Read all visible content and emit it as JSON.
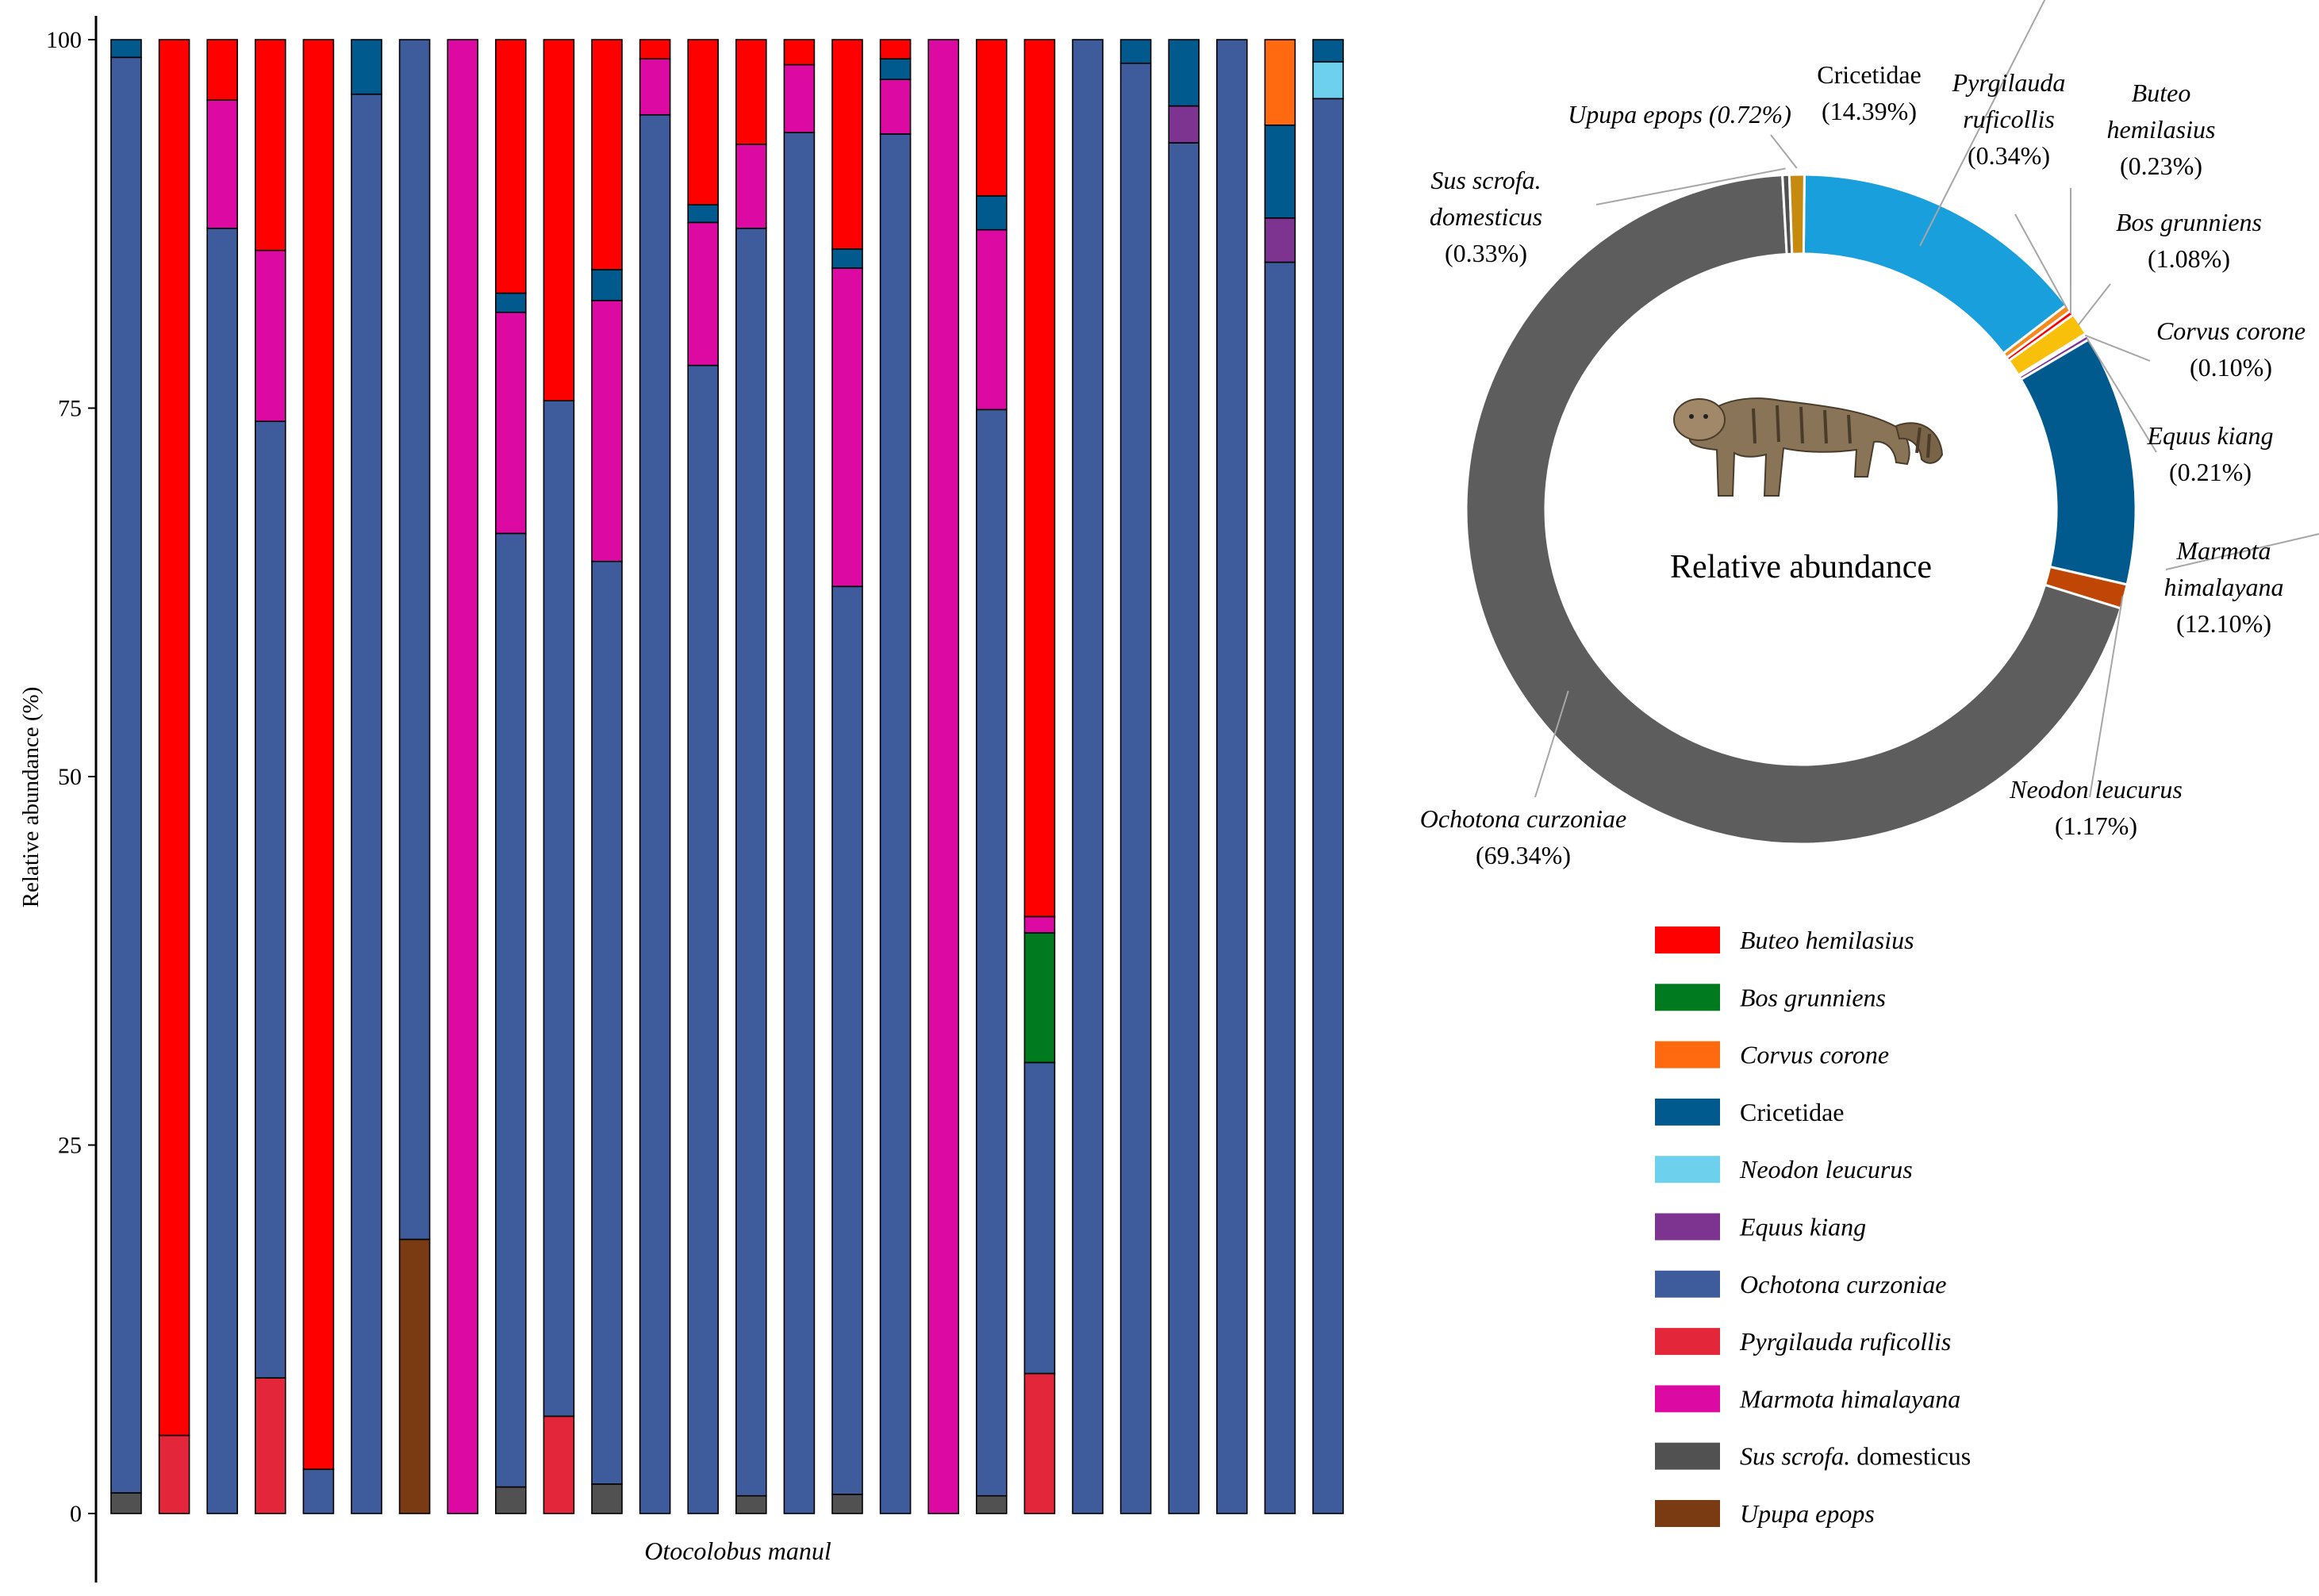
{
  "colors": {
    "Buteo hemilasius": "#ff0000",
    "Bos grunniens": "#007a1e",
    "Corvus corone": "#ff6a10",
    "Cricetidae": "#005a8e",
    "Neodon leucurus": "#6dd1ed",
    "Equus kiang": "#7d3491",
    "Ochotona curzoniae": "#3e5b9b",
    "Pyrgilauda ruficollis": "#e3263a",
    "Marmota himalayana": "#dc0aa2",
    "Sus scrofa. domesticus": "#515151",
    "Upupa epops": "#7a3b12",
    "Cricetidae (donut)": "#199fdc",
    "Bos grunniens (donut)": "#f8c00b",
    "Marmota himalayana (donut)": "#005a8e",
    "Neodon leucurus (donut)": "#bf4605",
    "Ochotona curzoniae (donut)": "#5d5d5d",
    "Upupa epops (donut)": "#c68a0e",
    "Pyrgilauda ruficollis (donut)": "#f58a1e"
  },
  "chart_data": [
    {
      "type": "bar",
      "stacked": true,
      "title": "",
      "xlabel": "Otocolobus manul",
      "ylabel": "Relative abundance (%)",
      "ylim": [
        0,
        100
      ],
      "yticks": [
        "0",
        "25",
        "50",
        "75",
        "100"
      ],
      "stack_order_bottom_to_top": [
        "Upupa epops",
        "Sus scrofa. domesticus",
        "Pyrgilauda ruficollis",
        "Ochotona curzoniae",
        "Bos grunniens",
        "Marmota himalayana",
        "Equus kiang",
        "Neodon leucurus",
        "Cricetidae",
        "Corvus corone",
        "Buteo hemilasius"
      ],
      "samples": [
        {
          "Sus scrofa. domesticus": 1.4,
          "Ochotona curzoniae": 97.4,
          "Cricetidae": 1.2
        },
        {
          "Pyrgilauda ruficollis": 5.3,
          "Buteo hemilasius": 94.7
        },
        {
          "Ochotona curzoniae": 87.2,
          "Marmota himalayana": 8.7,
          "Buteo hemilasius": 4.1
        },
        {
          "Ochotona curzoniae": 64.9,
          "Pyrgilauda ruficollis": 9.2,
          "Marmota himalayana": 11.6,
          "Buteo hemilasius": 14.3
        },
        {
          "Ochotona curzoniae": 3.0,
          "Buteo hemilasius": 97.0
        },
        {
          "Ochotona curzoniae": 96.3,
          "Cricetidae": 3.7
        },
        {
          "Upupa epops": 18.6,
          "Ochotona curzoniae": 81.4
        },
        {
          "Marmota himalayana": 100
        },
        {
          "Sus scrofa. domesticus": 1.8,
          "Ochotona curzoniae": 64.7,
          "Marmota himalayana": 15.0,
          "Cricetidae": 1.3,
          "Buteo hemilasius": 17.2
        },
        {
          "Ochotona curzoniae": 68.9,
          "Pyrgilauda ruficollis": 6.6,
          "Buteo hemilasius": 24.5
        },
        {
          "Sus scrofa. domesticus": 2.0,
          "Ochotona curzoniae": 62.6,
          "Marmota himalayana": 17.7,
          "Cricetidae": 2.1,
          "Buteo hemilasius": 15.6
        },
        {
          "Ochotona curzoniae": 94.9,
          "Marmota himalayana": 3.8,
          "Buteo hemilasius": 1.3
        },
        {
          "Ochotona curzoniae": 77.9,
          "Marmota himalayana": 9.7,
          "Cricetidae": 1.2,
          "Buteo hemilasius": 11.2
        },
        {
          "Sus scrofa. domesticus": 1.2,
          "Ochotona curzoniae": 86.0,
          "Marmota himalayana": 5.7,
          "Buteo hemilasius": 7.1
        },
        {
          "Ochotona curzoniae": 93.7,
          "Marmota himalayana": 4.6,
          "Buteo hemilasius": 1.7
        },
        {
          "Sus scrofa. domesticus": 1.3,
          "Ochotona curzoniae": 61.6,
          "Marmota himalayana": 21.6,
          "Cricetidae": 1.3,
          "Buteo hemilasius": 14.2
        },
        {
          "Ochotona curzoniae": 93.6,
          "Marmota himalayana": 3.7,
          "Cricetidae": 1.4,
          "Buteo hemilasius": 1.3
        },
        {
          "Marmota himalayana": 100
        },
        {
          "Sus scrofa. domesticus": 1.2,
          "Ochotona curzoniae": 73.7,
          "Marmota himalayana": 12.2,
          "Cricetidae": 2.3,
          "Buteo hemilasius": 10.6
        },
        {
          "Ochotona curzoniae": 21.1,
          "Pyrgilauda ruficollis": 9.5,
          "Marmota himalayana": 1.1,
          "Bos grunniens": 8.8,
          "Buteo hemilasius": 59.5
        },
        {
          "Ochotona curzoniae": 100
        },
        {
          "Ochotona curzoniae": 98.4,
          "Cricetidae": 1.6
        },
        {
          "Ochotona curzoniae": 93.0,
          "Equus kiang": 2.5,
          "Cricetidae": 4.5
        },
        {
          "Ochotona curzoniae": 100
        },
        {
          "Ochotona curzoniae": 84.9,
          "Equus kiang": 3.0,
          "Cricetidae": 6.3,
          "Corvus corone": 5.8
        },
        {
          "Ochotona curzoniae": 96.0,
          "Neodon leucurus": 2.5,
          "Cricetidae": 1.5
        }
      ]
    },
    {
      "type": "pie",
      "donut": true,
      "center_label": "Relative abundance",
      "slices": [
        {
          "name": "Cricetidae",
          "value": 14.39,
          "label_lines": [
            "Cricetidae",
            "(14.39%)"
          ],
          "italic": false,
          "color_key": "Cricetidae (donut)"
        },
        {
          "name": "Pyrgilauda ruficollis",
          "value": 0.34,
          "label_lines": [
            "Pyrgilauda",
            "ruficollis",
            "(0.34%)"
          ],
          "italic": true,
          "color_key": "Pyrgilauda ruficollis (donut)"
        },
        {
          "name": "Buteo hemilasius",
          "value": 0.23,
          "label_lines": [
            "Buteo",
            "hemilasius",
            "(0.23%)"
          ],
          "italic": true,
          "color_key": "Buteo hemilasius"
        },
        {
          "name": "Bos grunniens",
          "value": 1.08,
          "label_lines": [
            "Bos grunniens",
            "(1.08%)"
          ],
          "italic": true,
          "color_key": "Bos grunniens (donut)"
        },
        {
          "name": "Corvus corone",
          "value": 0.1,
          "label_lines": [
            "Corvus corone",
            "(0.10%)"
          ],
          "italic": true,
          "color_key": "Corvus corone"
        },
        {
          "name": "Equus kiang",
          "value": 0.21,
          "label_lines": [
            "Equus kiang",
            "(0.21%)"
          ],
          "italic": true,
          "color_key": "Equus kiang"
        },
        {
          "name": "Marmota himalayana",
          "value": 12.1,
          "label_lines": [
            "Marmota",
            "himalayana",
            "(12.10%)"
          ],
          "italic": true,
          "color_key": "Marmota himalayana (donut)"
        },
        {
          "name": "Neodon leucurus",
          "value": 1.17,
          "label_lines": [
            "Neodon leucurus",
            "(1.17%)"
          ],
          "italic": true,
          "color_key": "Neodon leucurus (donut)"
        },
        {
          "name": "Ochotona curzoniae",
          "value": 69.34,
          "label_lines": [
            "Ochotona curzoniae",
            "(69.34%)"
          ],
          "italic": true,
          "color_key": "Ochotona curzoniae (donut)"
        },
        {
          "name": "Sus scrofa. domesticus",
          "value": 0.33,
          "label_lines": [
            "Sus scrofa.",
            "domesticus",
            "(0.33%)"
          ],
          "italic": true,
          "color_key": "Sus scrofa. domesticus"
        },
        {
          "name": "Upupa epops",
          "value": 0.72,
          "label_lines": [
            "Upupa epops (0.72%)"
          ],
          "italic": true,
          "color_key": "Upupa epops (donut)"
        }
      ]
    }
  ],
  "legend": [
    {
      "name": "Buteo hemilasius",
      "label": "Buteo hemilasius",
      "italic": true
    },
    {
      "name": "Bos grunniens",
      "label": "Bos grunniens",
      "italic": true
    },
    {
      "name": "Corvus corone",
      "label": "Corvus corone",
      "italic": true
    },
    {
      "name": "Cricetidae",
      "label": "Cricetidae",
      "italic": false
    },
    {
      "name": "Neodon leucurus",
      "label": "Neodon leucurus",
      "italic": true
    },
    {
      "name": "Equus kiang",
      "label": "Equus kiang",
      "italic": true
    },
    {
      "name": "Ochotona curzoniae",
      "label": "Ochotona curzoniae",
      "italic": true
    },
    {
      "name": "Pyrgilauda ruficollis",
      "label": "Pyrgilauda ruficollis",
      "italic": true
    },
    {
      "name": "Marmota himalayana",
      "label": "Marmota himalayana",
      "italic": true
    },
    {
      "name": "Sus scrofa. domesticus",
      "label": "Sus scrofa.",
      "label_suffix": " domesticus",
      "italic": true
    },
    {
      "name": "Upupa epops",
      "label": "Upupa epops",
      "italic": true
    }
  ]
}
